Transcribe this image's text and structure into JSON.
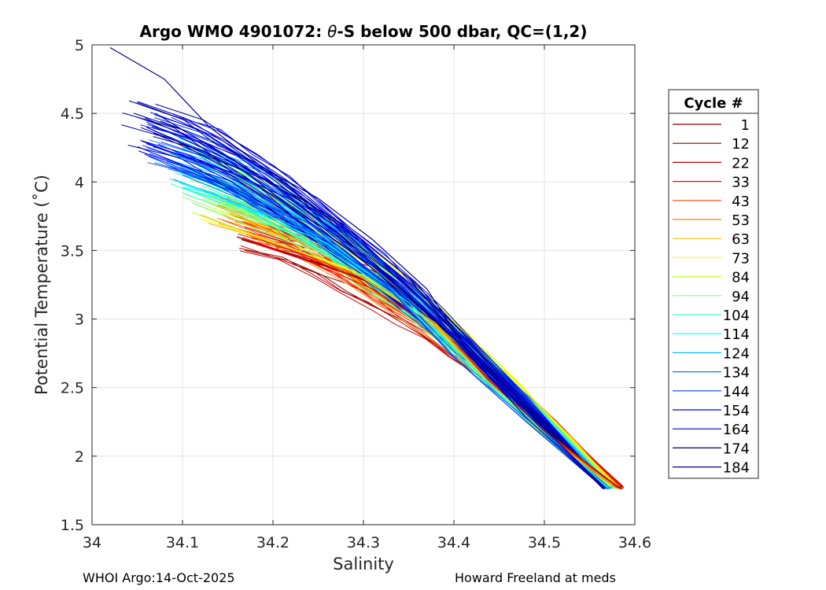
{
  "chart_data": {
    "type": "line",
    "title_prefix": "Argo WMO 4901072: ",
    "title_theta": "θ",
    "title_suffix": "-S below 500 dbar,  QC=(1,2)",
    "xlabel": "Salinity",
    "ylabel": "Potential Temperature (˚C)",
    "xlim": [
      34.0,
      34.6
    ],
    "ylim": [
      1.5,
      5.0
    ],
    "xticks": [
      34.0,
      34.1,
      34.2,
      34.3,
      34.4,
      34.5,
      34.6
    ],
    "xtick_labels": [
      "34",
      "34.1",
      "34.2",
      "34.3",
      "34.4",
      "34.5",
      "34.6"
    ],
    "yticks": [
      1.5,
      2.0,
      2.5,
      3.0,
      3.5,
      4.0,
      4.5,
      5.0
    ],
    "ytick_labels": [
      "1.5",
      "2",
      "2.5",
      "3",
      "3.5",
      "4",
      "4.5",
      "5"
    ],
    "grid": true,
    "legend_title": "Cycle #",
    "legend_position": "outside-right",
    "colormap": "jet",
    "series": [
      {
        "name": "1",
        "color": "#800000",
        "x": [
          34.16,
          34.22,
          34.3,
          34.38,
          34.44,
          34.5,
          34.585
        ],
        "y": [
          3.6,
          3.47,
          3.29,
          2.95,
          2.52,
          2.18,
          1.76
        ]
      },
      {
        "name": "12",
        "color": "#8a0000",
        "x": [
          34.165,
          34.23,
          34.31,
          34.39,
          34.44,
          34.5,
          34.583
        ],
        "y": [
          3.58,
          3.45,
          3.27,
          2.9,
          2.5,
          2.16,
          1.77
        ]
      },
      {
        "name": "22",
        "color": "#c00000",
        "x": [
          34.17,
          34.24,
          34.32,
          34.39,
          34.45,
          34.51,
          34.582
        ],
        "y": [
          3.57,
          3.44,
          3.23,
          2.87,
          2.48,
          2.14,
          1.77
        ]
      },
      {
        "name": "33",
        "color": "#ff0000",
        "x": [
          34.18,
          34.24,
          34.31,
          34.39,
          34.45,
          34.51,
          34.58
        ],
        "y": [
          3.55,
          3.42,
          3.22,
          2.88,
          2.49,
          2.12,
          1.77
        ]
      },
      {
        "name": "43",
        "color": "#ff4000",
        "x": [
          34.17,
          34.24,
          34.32,
          34.4,
          34.45,
          34.51,
          34.578
        ],
        "y": [
          3.62,
          3.46,
          3.24,
          2.84,
          2.48,
          2.13,
          1.78
        ]
      },
      {
        "name": "53",
        "color": "#ff8000",
        "x": [
          34.14,
          34.22,
          34.3,
          34.38,
          34.44,
          34.5,
          34.576
        ],
        "y": [
          3.7,
          3.52,
          3.31,
          2.96,
          2.52,
          2.17,
          1.78
        ]
      },
      {
        "name": "63",
        "color": "#ffbf00",
        "x": [
          34.12,
          34.2,
          34.29,
          34.38,
          34.44,
          34.5,
          34.575
        ],
        "y": [
          3.76,
          3.56,
          3.35,
          2.97,
          2.53,
          2.16,
          1.79
        ]
      },
      {
        "name": "73",
        "color": "#ffff00",
        "x": [
          34.12,
          34.21,
          34.3,
          34.38,
          34.44,
          34.5,
          34.574
        ],
        "y": [
          3.73,
          3.54,
          3.32,
          2.95,
          2.51,
          2.15,
          1.78
        ]
      },
      {
        "name": "84",
        "color": "#bfff40",
        "x": [
          34.11,
          34.19,
          34.28,
          34.37,
          34.44,
          34.5,
          34.573
        ],
        "y": [
          3.78,
          3.58,
          3.38,
          3.0,
          2.53,
          2.16,
          1.78
        ]
      },
      {
        "name": "94",
        "color": "#80ff80",
        "x": [
          34.11,
          34.18,
          34.27,
          34.36,
          34.43,
          34.5,
          34.572
        ],
        "y": [
          3.85,
          3.66,
          3.44,
          3.05,
          2.57,
          2.17,
          1.78
        ]
      },
      {
        "name": "104",
        "color": "#40ffbf",
        "x": [
          34.1,
          34.17,
          34.25,
          34.34,
          34.42,
          34.49,
          34.571
        ],
        "y": [
          3.92,
          3.75,
          3.55,
          3.15,
          2.62,
          2.22,
          1.77
        ]
      },
      {
        "name": "114",
        "color": "#00ffff",
        "x": [
          34.1,
          34.18,
          34.26,
          34.35,
          34.43,
          34.5,
          34.57
        ],
        "y": [
          3.96,
          3.78,
          3.55,
          3.12,
          2.59,
          2.18,
          1.77
        ]
      },
      {
        "name": "124",
        "color": "#00bfff",
        "x": [
          34.09,
          34.17,
          34.26,
          34.34,
          34.42,
          34.49,
          34.569
        ],
        "y": [
          4.02,
          3.82,
          3.58,
          3.16,
          2.63,
          2.2,
          1.77
        ]
      },
      {
        "name": "134",
        "color": "#0080ff",
        "x": [
          34.1,
          34.17,
          34.25,
          34.33,
          34.41,
          34.49,
          34.568
        ],
        "y": [
          4.05,
          3.86,
          3.62,
          3.22,
          2.66,
          2.22,
          1.77
        ]
      },
      {
        "name": "144",
        "color": "#0040ff",
        "x": [
          34.09,
          34.16,
          34.24,
          34.32,
          34.4,
          34.48,
          34.567
        ],
        "y": [
          4.1,
          3.92,
          3.7,
          3.28,
          2.72,
          2.25,
          1.76
        ]
      },
      {
        "name": "154",
        "color": "#0000ff",
        "x": [
          34.06,
          34.15,
          34.23,
          34.3,
          34.37,
          34.44,
          34.5,
          34.566
        ],
        "y": [
          4.28,
          4.08,
          3.84,
          3.56,
          3.1,
          2.58,
          2.18,
          1.76
        ]
      },
      {
        "name": "164",
        "color": "#0000bf",
        "x": [
          34.07,
          34.15,
          34.22,
          34.29,
          34.36,
          34.43,
          34.5,
          34.566
        ],
        "y": [
          4.5,
          4.18,
          3.9,
          3.62,
          3.25,
          2.68,
          2.2,
          1.76
        ]
      },
      {
        "name": "174",
        "color": "#000080",
        "x": [
          34.06,
          34.14,
          34.21,
          34.28,
          34.35,
          34.42,
          34.49,
          34.567
        ],
        "y": [
          4.4,
          4.16,
          3.96,
          3.68,
          3.3,
          2.74,
          2.26,
          1.77
        ]
      },
      {
        "name": "184",
        "color": "#00008f",
        "x": [
          34.02,
          34.08,
          34.13,
          34.19,
          34.25,
          34.31,
          34.37,
          34.42,
          34.48,
          34.566
        ],
        "y": [
          4.98,
          4.75,
          4.4,
          4.1,
          3.88,
          3.58,
          3.22,
          2.72,
          2.28,
          1.76
        ]
      }
    ],
    "fill_profiles": {
      "count": 180,
      "shallow_start_salinity": [
        34.02,
        34.2
      ],
      "shallow_start_theta": [
        3.55,
        4.98
      ],
      "deep_end_salinity": [
        34.565,
        34.586
      ],
      "deep_end_theta": [
        1.755,
        1.78
      ]
    }
  },
  "footer": {
    "left": "WHOI Argo:14-Oct-2025",
    "right": "Howard Freeland at meds"
  }
}
